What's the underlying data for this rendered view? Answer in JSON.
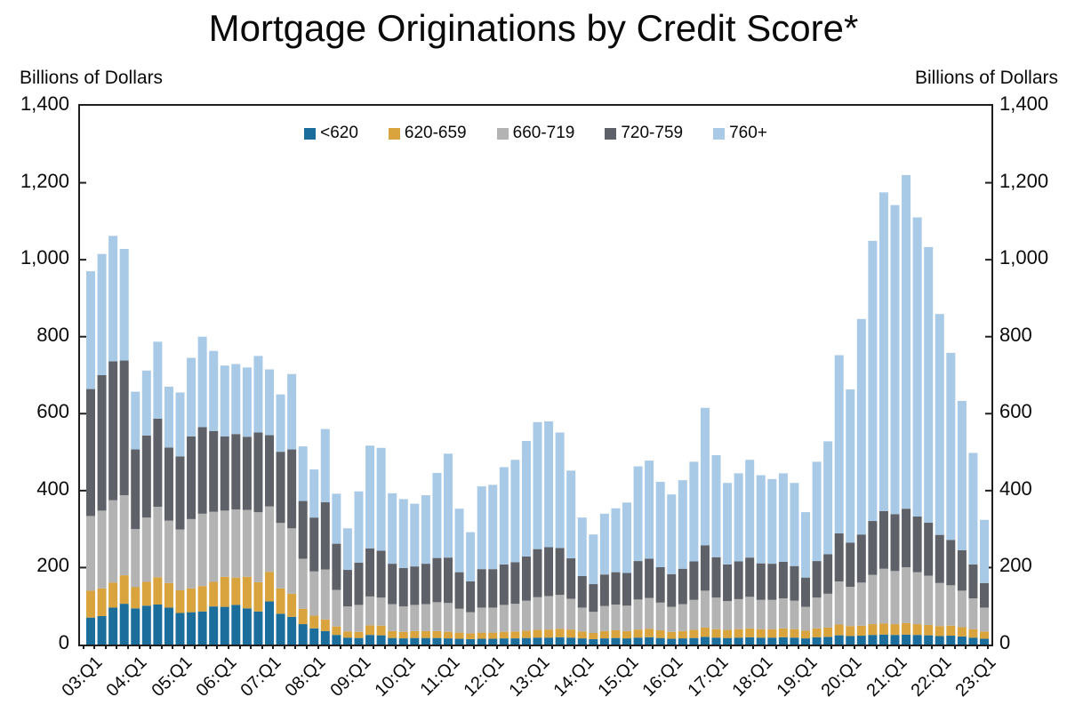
{
  "title": "Mortgage Originations by Credit Score*",
  "y_axis_unit_left": "Billions of Dollars",
  "y_axis_unit_right": "Billions of Dollars",
  "chart_data": {
    "type": "bar",
    "stacked": true,
    "title": "Mortgage Originations by Credit Score*",
    "ylabel": "Billions of Dollars",
    "ylim": [
      0,
      1400
    ],
    "grid": false,
    "legend_position": "top-center",
    "y_tick_values": [
      0,
      200,
      400,
      600,
      800,
      1000,
      1200,
      1400
    ],
    "y_tick_labels": [
      "0",
      "200",
      "400",
      "600",
      "800",
      "1,000",
      "1,200",
      "1,400"
    ],
    "x_label_every": 4,
    "categories": [
      "03:Q1",
      "03:Q2",
      "03:Q3",
      "03:Q4",
      "04:Q1",
      "04:Q2",
      "04:Q3",
      "04:Q4",
      "05:Q1",
      "05:Q2",
      "05:Q3",
      "05:Q4",
      "06:Q1",
      "06:Q2",
      "06:Q3",
      "06:Q4",
      "07:Q1",
      "07:Q2",
      "07:Q3",
      "07:Q4",
      "08:Q1",
      "08:Q2",
      "08:Q3",
      "08:Q4",
      "09:Q1",
      "09:Q2",
      "09:Q3",
      "09:Q4",
      "10:Q1",
      "10:Q2",
      "10:Q3",
      "10:Q4",
      "11:Q1",
      "11:Q2",
      "11:Q3",
      "11:Q4",
      "12:Q1",
      "12:Q2",
      "12:Q3",
      "12:Q4",
      "13:Q1",
      "13:Q2",
      "13:Q3",
      "13:Q4",
      "14:Q1",
      "14:Q2",
      "14:Q3",
      "14:Q4",
      "15:Q1",
      "15:Q2",
      "15:Q3",
      "15:Q4",
      "16:Q1",
      "16:Q2",
      "16:Q3",
      "16:Q4",
      "17:Q1",
      "17:Q2",
      "17:Q3",
      "17:Q4",
      "18:Q1",
      "18:Q2",
      "18:Q3",
      "18:Q4",
      "19:Q1",
      "19:Q2",
      "19:Q3",
      "19:Q4",
      "20:Q1",
      "20:Q2",
      "20:Q3",
      "20:Q4",
      "21:Q1",
      "21:Q2",
      "21:Q3",
      "21:Q4",
      "22:Q1",
      "22:Q2",
      "22:Q3",
      "22:Q4",
      "23:Q1"
    ],
    "series": [
      {
        "name": "<620",
        "color": "#1B6D9C",
        "values": [
          70,
          74,
          96,
          106,
          94,
          101,
          104,
          96,
          82,
          84,
          86,
          99,
          98,
          103,
          94,
          86,
          112,
          80,
          72,
          53,
          42,
          35,
          25,
          18,
          17,
          25,
          24,
          17,
          16,
          17,
          17,
          17,
          16,
          15,
          14,
          15,
          15,
          16,
          16,
          17,
          18,
          18,
          19,
          18,
          16,
          14,
          16,
          17,
          16,
          18,
          19,
          17,
          15,
          16,
          17,
          20,
          18,
          17,
          18,
          19,
          18,
          18,
          19,
          18,
          16,
          19,
          20,
          24,
          22,
          23,
          25,
          26,
          25,
          26,
          25,
          24,
          22,
          23,
          21,
          18,
          15
        ]
      },
      {
        "name": "620-659",
        "color": "#D9A33E",
        "values": [
          70,
          72,
          65,
          74,
          55,
          62,
          71,
          64,
          59,
          62,
          66,
          64,
          78,
          71,
          82,
          76,
          77,
          66,
          60,
          40,
          33,
          30,
          22,
          16,
          16,
          25,
          25,
          18,
          17,
          18,
          18,
          18,
          17,
          16,
          15,
          16,
          16,
          17,
          18,
          19,
          20,
          21,
          22,
          21,
          18,
          16,
          19,
          20,
          19,
          21,
          22,
          20,
          18,
          19,
          21,
          24,
          22,
          21,
          22,
          23,
          22,
          22,
          23,
          22,
          20,
          23,
          24,
          28,
          26,
          26,
          28,
          29,
          28,
          30,
          28,
          27,
          26,
          26,
          24,
          22,
          19
        ]
      },
      {
        "name": "660-719",
        "color": "#B3B3B4",
        "values": [
          194,
          202,
          214,
          208,
          151,
          167,
          183,
          162,
          158,
          180,
          188,
          182,
          172,
          177,
          174,
          182,
          170,
          170,
          170,
          130,
          115,
          130,
          95,
          65,
          70,
          75,
          73,
          70,
          66,
          68,
          70,
          75,
          75,
          62,
          55,
          65,
          65,
          70,
          72,
          78,
          85,
          87,
          88,
          80,
          62,
          55,
          65,
          67,
          66,
          78,
          80,
          72,
          65,
          70,
          78,
          96,
          82,
          75,
          78,
          82,
          76,
          76,
          78,
          74,
          62,
          80,
          88,
          112,
          102,
          112,
          128,
          142,
          138,
          145,
          135,
          128,
          112,
          105,
          95,
          80,
          62
        ]
      },
      {
        "name": "720-759",
        "color": "#5E6167",
        "values": [
          330,
          352,
          361,
          350,
          207,
          213,
          229,
          190,
          190,
          215,
          225,
          210,
          193,
          196,
          190,
          207,
          185,
          185,
          205,
          150,
          140,
          175,
          120,
          95,
          110,
          125,
          122,
          105,
          100,
          100,
          105,
          115,
          118,
          95,
          80,
          100,
          100,
          105,
          108,
          115,
          125,
          127,
          122,
          105,
          82,
          72,
          82,
          84,
          85,
          100,
          102,
          92,
          85,
          92,
          100,
          118,
          105,
          95,
          98,
          102,
          95,
          94,
          95,
          90,
          76,
          95,
          103,
          125,
          115,
          125,
          140,
          150,
          148,
          152,
          145,
          138,
          125,
          118,
          105,
          88,
          64
        ]
      },
      {
        "name": "760+",
        "color": "#A8CAE7",
        "values": [
          306,
          315,
          326,
          290,
          150,
          169,
          200,
          158,
          166,
          204,
          235,
          208,
          184,
          182,
          180,
          199,
          171,
          149,
          196,
          142,
          125,
          190,
          130,
          108,
          185,
          267,
          267,
          183,
          179,
          163,
          178,
          221,
          270,
          165,
          128,
          215,
          219,
          253,
          266,
          300,
          330,
          327,
          300,
          228,
          152,
          129,
          158,
          166,
          183,
          246,
          255,
          222,
          207,
          230,
          259,
          357,
          265,
          212,
          229,
          254,
          229,
          220,
          230,
          216,
          170,
          258,
          293,
          463,
          398,
          560,
          728,
          828,
          803,
          867,
          777,
          716,
          574,
          486,
          388,
          290,
          164
        ]
      }
    ]
  }
}
